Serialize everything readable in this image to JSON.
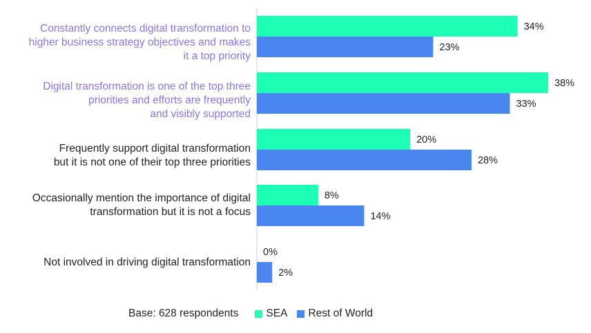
{
  "chart_data": {
    "type": "bar",
    "orientation": "horizontal",
    "categories": [
      "Constantly connects digital transformation to\nhigher business strategy objectives and makes\nit a top priority",
      "Digital transformation is one of the top three\npriorities and efforts are frequently\nand visibly supported",
      "Frequently support digital transformation\nbut it is not one of their top three priorities",
      "Occasionally mention the importance of digital\ntransformation but it is not a focus",
      "Not involved in driving digital transformation"
    ],
    "highlighted_categories": [
      0,
      1
    ],
    "series": [
      {
        "name": "SEA",
        "values": [
          34,
          38,
          20,
          8,
          0
        ],
        "labels": [
          "34%",
          "38%",
          "20%",
          "8%",
          "0%"
        ]
      },
      {
        "name": "Rest of World",
        "values": [
          23,
          33,
          28,
          14,
          2
        ],
        "labels": [
          "23%",
          "33%",
          "28%",
          "14%",
          "2%"
        ]
      }
    ],
    "xlim": [
      0,
      38
    ],
    "grid": false,
    "legend_position": "bottom",
    "base_note": "Base: 628 respondents"
  },
  "colors": {
    "sea": "#1DFFB4",
    "row": "#4A86F0",
    "highlight_text": "#8A75F0",
    "normal_text": "#222222",
    "axis": "#cccccc"
  }
}
